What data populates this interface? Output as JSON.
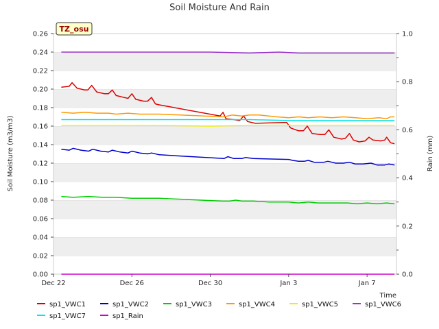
{
  "chart_data": {
    "type": "line",
    "title": "Soil Moisture And Rain",
    "site_tag": "TZ_osu",
    "xlabel": "Time",
    "ylabel": "Soil Moisture (m3/m3)",
    "y2label": "Rain (mm)",
    "xlim": [
      0,
      17.5
    ],
    "ylim": [
      0,
      0.26
    ],
    "y2lim": [
      0,
      1.0
    ],
    "x_ticks": [
      {
        "x": 0,
        "label": "Dec 22"
      },
      {
        "x": 4,
        "label": "Dec 26"
      },
      {
        "x": 8,
        "label": "Dec 30"
      },
      {
        "x": 12,
        "label": "Jan 3"
      },
      {
        "x": 16,
        "label": "Jan 7"
      }
    ],
    "y_ticks": [
      "0.00",
      "0.02",
      "0.04",
      "0.06",
      "0.08",
      "0.10",
      "0.12",
      "0.14",
      "0.16",
      "0.18",
      "0.20",
      "0.22",
      "0.24",
      "0.26"
    ],
    "y2_ticks": [
      "0.0",
      "0.2",
      "0.4",
      "0.6",
      "0.8",
      "1.0"
    ],
    "grid": "horizontal bands",
    "legend_position": "bottom",
    "series": [
      {
        "name": "sp1_VWC1",
        "color": "#dd0000",
        "points": [
          [
            0.4,
            0.202
          ],
          [
            0.8,
            0.203
          ],
          [
            0.95,
            0.207
          ],
          [
            1.2,
            0.201
          ],
          [
            1.6,
            0.199
          ],
          [
            1.75,
            0.199
          ],
          [
            1.95,
            0.204
          ],
          [
            2.2,
            0.197
          ],
          [
            2.6,
            0.195
          ],
          [
            2.8,
            0.195
          ],
          [
            3.0,
            0.199
          ],
          [
            3.2,
            0.193
          ],
          [
            3.6,
            0.191
          ],
          [
            3.8,
            0.19
          ],
          [
            4.0,
            0.195
          ],
          [
            4.2,
            0.189
          ],
          [
            4.6,
            0.187
          ],
          [
            4.8,
            0.187
          ],
          [
            5.0,
            0.191
          ],
          [
            5.2,
            0.184
          ],
          [
            5.4,
            0.183
          ],
          [
            8.5,
            0.171
          ],
          [
            8.65,
            0.175
          ],
          [
            8.8,
            0.168
          ],
          [
            9.2,
            0.167
          ],
          [
            9.5,
            0.166
          ],
          [
            9.7,
            0.171
          ],
          [
            9.9,
            0.165
          ],
          [
            10.3,
            0.163
          ],
          [
            11.9,
            0.164
          ],
          [
            12.1,
            0.158
          ],
          [
            12.5,
            0.155
          ],
          [
            12.75,
            0.155
          ],
          [
            12.95,
            0.16
          ],
          [
            13.2,
            0.152
          ],
          [
            13.6,
            0.151
          ],
          [
            13.85,
            0.151
          ],
          [
            14.05,
            0.156
          ],
          [
            14.3,
            0.148
          ],
          [
            14.7,
            0.146
          ],
          [
            14.9,
            0.147
          ],
          [
            15.1,
            0.152
          ],
          [
            15.3,
            0.145
          ],
          [
            15.6,
            0.143
          ],
          [
            15.9,
            0.144
          ],
          [
            16.1,
            0.148
          ],
          [
            16.3,
            0.145
          ],
          [
            16.7,
            0.144
          ],
          [
            16.9,
            0.145
          ],
          [
            17.0,
            0.148
          ],
          [
            17.2,
            0.142
          ],
          [
            17.4,
            0.141
          ]
        ]
      },
      {
        "name": "sp1_VWC2",
        "color": "#0000cc",
        "points": [
          [
            0.4,
            0.135
          ],
          [
            0.8,
            0.134
          ],
          [
            1.0,
            0.136
          ],
          [
            1.4,
            0.134
          ],
          [
            1.8,
            0.133
          ],
          [
            2.0,
            0.135
          ],
          [
            2.4,
            0.133
          ],
          [
            2.8,
            0.132
          ],
          [
            3.0,
            0.134
          ],
          [
            3.4,
            0.132
          ],
          [
            3.8,
            0.131
          ],
          [
            4.0,
            0.133
          ],
          [
            4.4,
            0.131
          ],
          [
            4.8,
            0.13
          ],
          [
            5.0,
            0.131
          ],
          [
            5.4,
            0.129
          ],
          [
            8.7,
            0.125
          ],
          [
            8.9,
            0.127
          ],
          [
            9.2,
            0.125
          ],
          [
            9.6,
            0.125
          ],
          [
            9.8,
            0.126
          ],
          [
            10.2,
            0.125
          ],
          [
            12.0,
            0.124
          ],
          [
            12.2,
            0.123
          ],
          [
            12.5,
            0.122
          ],
          [
            12.8,
            0.122
          ],
          [
            13.0,
            0.123
          ],
          [
            13.3,
            0.121
          ],
          [
            13.8,
            0.121
          ],
          [
            14.0,
            0.122
          ],
          [
            14.4,
            0.12
          ],
          [
            14.8,
            0.12
          ],
          [
            15.1,
            0.121
          ],
          [
            15.4,
            0.119
          ],
          [
            15.8,
            0.119
          ],
          [
            16.2,
            0.12
          ],
          [
            16.5,
            0.118
          ],
          [
            16.9,
            0.118
          ],
          [
            17.1,
            0.119
          ],
          [
            17.4,
            0.118
          ]
        ]
      },
      {
        "name": "sp1_VWC3",
        "color": "#00cc00",
        "points": [
          [
            0.4,
            0.084
          ],
          [
            1.0,
            0.083
          ],
          [
            1.8,
            0.084
          ],
          [
            2.5,
            0.083
          ],
          [
            3.2,
            0.083
          ],
          [
            4.0,
            0.082
          ],
          [
            4.5,
            0.082
          ],
          [
            5.0,
            0.082
          ],
          [
            5.4,
            0.082
          ],
          [
            8.6,
            0.079
          ],
          [
            9.0,
            0.079
          ],
          [
            9.3,
            0.08
          ],
          [
            9.6,
            0.079
          ],
          [
            10.2,
            0.079
          ],
          [
            11.0,
            0.078
          ],
          [
            12.0,
            0.078
          ],
          [
            12.5,
            0.077
          ],
          [
            13.0,
            0.078
          ],
          [
            13.5,
            0.077
          ],
          [
            14.0,
            0.077
          ],
          [
            14.5,
            0.077
          ],
          [
            15.0,
            0.077
          ],
          [
            15.5,
            0.076
          ],
          [
            16.0,
            0.077
          ],
          [
            16.5,
            0.076
          ],
          [
            17.0,
            0.077
          ],
          [
            17.4,
            0.076
          ]
        ]
      },
      {
        "name": "sp1_VWC4",
        "color": "#ff9900",
        "points": [
          [
            0.4,
            0.175
          ],
          [
            1.0,
            0.174
          ],
          [
            1.6,
            0.175
          ],
          [
            2.2,
            0.174
          ],
          [
            2.8,
            0.174
          ],
          [
            3.2,
            0.173
          ],
          [
            3.8,
            0.174
          ],
          [
            4.4,
            0.173
          ],
          [
            5.0,
            0.173
          ],
          [
            5.4,
            0.173
          ],
          [
            8.7,
            0.17
          ],
          [
            9.1,
            0.172
          ],
          [
            9.6,
            0.171
          ],
          [
            10.0,
            0.172
          ],
          [
            10.5,
            0.172
          ],
          [
            11.4,
            0.17
          ],
          [
            12.0,
            0.169
          ],
          [
            12.5,
            0.17
          ],
          [
            13.0,
            0.169
          ],
          [
            13.6,
            0.17
          ],
          [
            14.2,
            0.169
          ],
          [
            14.8,
            0.17
          ],
          [
            15.4,
            0.169
          ],
          [
            16.0,
            0.168
          ],
          [
            16.6,
            0.169
          ],
          [
            17.0,
            0.168
          ],
          [
            17.2,
            0.17
          ],
          [
            17.4,
            0.17
          ]
        ]
      },
      {
        "name": "sp1_VWC5",
        "color": "#eeee00",
        "points": [
          [
            0.4,
            0.161
          ],
          [
            4.0,
            0.161
          ],
          [
            8.0,
            0.16
          ],
          [
            10.5,
            0.161
          ],
          [
            12.0,
            0.161
          ],
          [
            17.4,
            0.161
          ]
        ]
      },
      {
        "name": "sp1_VWC6",
        "color": "#9933cc",
        "points": [
          [
            0.4,
            0.24
          ],
          [
            4.0,
            0.24
          ],
          [
            8.0,
            0.24
          ],
          [
            10.0,
            0.239
          ],
          [
            11.5,
            0.24
          ],
          [
            12.5,
            0.239
          ],
          [
            17.4,
            0.239
          ]
        ]
      },
      {
        "name": "sp1_VWC7",
        "color": "#00e5ee",
        "points": [
          [
            0.4,
            0.167
          ],
          [
            4.0,
            0.167
          ],
          [
            8.0,
            0.167
          ],
          [
            10.0,
            0.167
          ],
          [
            12.0,
            0.166
          ],
          [
            17.4,
            0.166
          ]
        ]
      },
      {
        "name": "sp1_Rain",
        "color": "#cc00cc",
        "axis": "right",
        "points": [
          [
            0.4,
            0.0
          ],
          [
            17.4,
            0.0
          ]
        ]
      }
    ]
  }
}
